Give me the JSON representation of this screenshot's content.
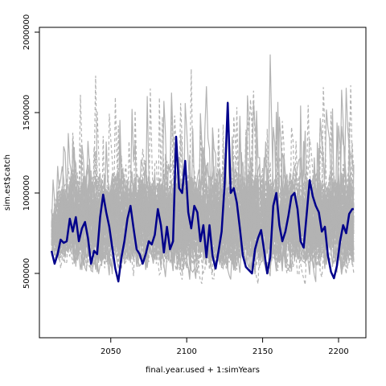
{
  "chart_data": {
    "type": "line",
    "title": "",
    "xlabel": "final.year.used + 1:simYears",
    "ylabel": "sim.est$catch",
    "x_range": [
      2011,
      2210
    ],
    "xlim": [
      2003,
      2218
    ],
    "ylim": [
      100000,
      2030000
    ],
    "x_ticks": [
      2050,
      2100,
      2150,
      2200
    ],
    "x_tick_labels": [
      "2050",
      "2100",
      "2150",
      "2200"
    ],
    "y_ticks": [
      500000,
      1000000,
      1500000,
      2000000
    ],
    "y_tick_labels": [
      "500000",
      "1000000",
      "1500000",
      "2000000"
    ],
    "grid": false,
    "legend": "none",
    "background_series": {
      "description_of_style": "many simulated trajectories, grey solid and dashed",
      "color": "#b3b3b3",
      "count_shown": 40,
      "envelope_lower": 230000,
      "envelope_upper": 1950000
    },
    "highlight_series": {
      "color": "#00008b",
      "x": [
        2011,
        2013,
        2015,
        2017,
        2019,
        2021,
        2023,
        2025,
        2027,
        2029,
        2031,
        2033,
        2035,
        2037,
        2039,
        2041,
        2043,
        2045,
        2047,
        2049,
        2051,
        2053,
        2055,
        2057,
        2059,
        2061,
        2063,
        2065,
        2067,
        2069,
        2071,
        2073,
        2075,
        2077,
        2079,
        2081,
        2083,
        2085,
        2087,
        2089,
        2091,
        2093,
        2095,
        2097,
        2099,
        2101,
        2103,
        2105,
        2107,
        2109,
        2111,
        2113,
        2115,
        2117,
        2119,
        2121,
        2123,
        2125,
        2127,
        2129,
        2131,
        2133,
        2135,
        2137,
        2139,
        2141,
        2143,
        2145,
        2147,
        2149,
        2151,
        2153,
        2155,
        2157,
        2159,
        2161,
        2163,
        2165,
        2167,
        2169,
        2171,
        2173,
        2175,
        2177,
        2179,
        2181,
        2183,
        2185,
        2187,
        2189,
        2191,
        2193,
        2195,
        2197,
        2199,
        2201,
        2203,
        2205,
        2207,
        2209,
        2210
      ],
      "y": [
        640000,
        560000,
        620000,
        710000,
        690000,
        700000,
        840000,
        760000,
        850000,
        700000,
        780000,
        820000,
        720000,
        560000,
        640000,
        620000,
        850000,
        990000,
        880000,
        790000,
        660000,
        530000,
        450000,
        600000,
        700000,
        840000,
        920000,
        780000,
        650000,
        620000,
        560000,
        620000,
        700000,
        680000,
        740000,
        900000,
        800000,
        630000,
        790000,
        650000,
        700000,
        1350000,
        1030000,
        1000000,
        1200000,
        880000,
        780000,
        920000,
        880000,
        700000,
        800000,
        600000,
        800000,
        610000,
        530000,
        640000,
        760000,
        1060000,
        1560000,
        1000000,
        1030000,
        940000,
        780000,
        610000,
        540000,
        520000,
        500000,
        650000,
        720000,
        770000,
        640000,
        500000,
        600000,
        920000,
        1000000,
        800000,
        700000,
        760000,
        860000,
        980000,
        1000000,
        900000,
        700000,
        660000,
        870000,
        1080000,
        980000,
        920000,
        880000,
        760000,
        790000,
        610000,
        510000,
        470000,
        550000,
        700000,
        800000,
        750000,
        870000,
        900000,
        900000
      ]
    }
  }
}
